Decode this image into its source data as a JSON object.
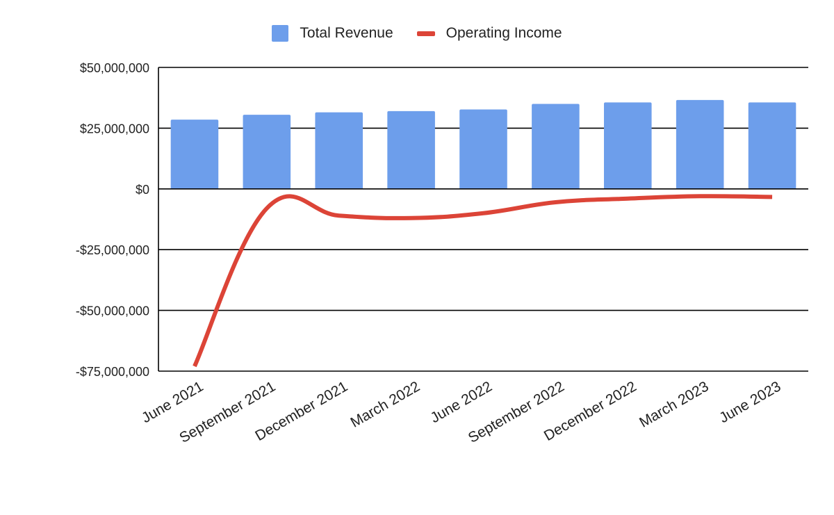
{
  "chart_data": {
    "type": "bar",
    "categories": [
      "June 2021",
      "September 2021",
      "December 2021",
      "March 2022",
      "June 2022",
      "September 2022",
      "December 2022",
      "March 2023",
      "June 2023"
    ],
    "series": [
      {
        "name": "Total Revenue",
        "type": "bar",
        "color": "#6d9eeb",
        "values": [
          28500000,
          30500000,
          31500000,
          32000000,
          32700000,
          35000000,
          35600000,
          36600000,
          35600000
        ]
      },
      {
        "name": "Operating Income",
        "type": "line",
        "color": "#dc4437",
        "values": [
          -73000000,
          -8000000,
          -11000000,
          -12000000,
          -10000000,
          -5500000,
          -4000000,
          -3000000,
          -3300000
        ]
      }
    ],
    "title": "",
    "xlabel": "",
    "ylabel": "",
    "ylim": [
      -75000000,
      50000000
    ],
    "yticks": [
      50000000,
      25000000,
      0,
      -25000000,
      -50000000,
      -75000000
    ],
    "ytick_labels": [
      "$50,000,000",
      "$25,000,000",
      "$0",
      "-$25,000,000",
      "-$50,000,000",
      "-$75,000,000"
    ],
    "grid": true,
    "legend_position": "top"
  }
}
